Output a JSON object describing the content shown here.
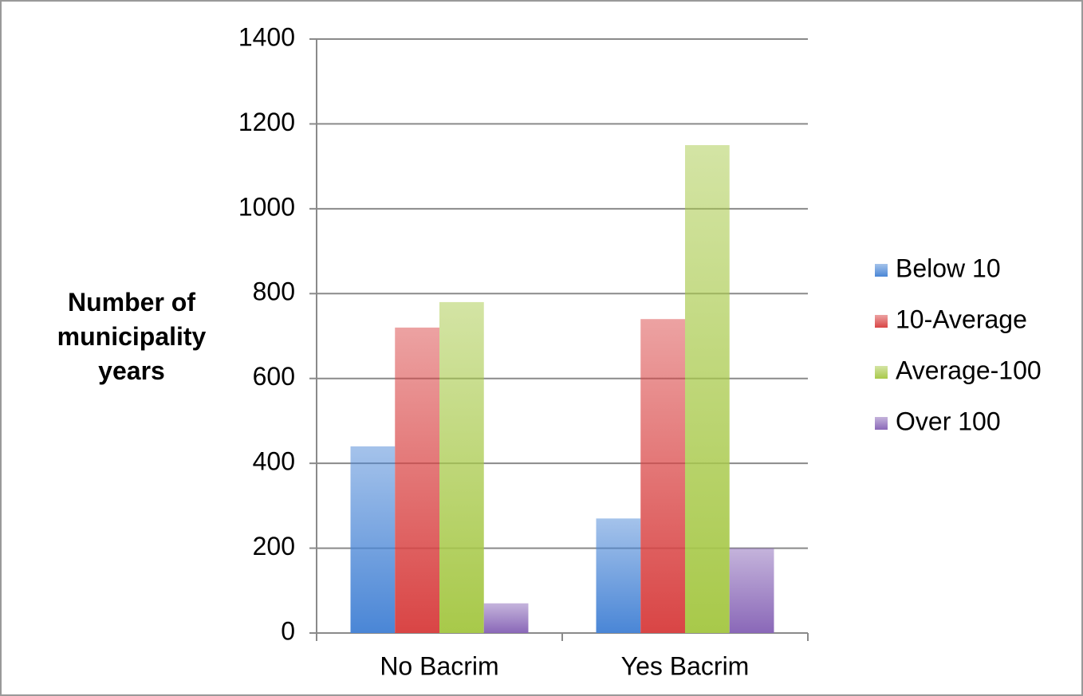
{
  "chart_data": {
    "type": "bar",
    "y_label": "Number of municipality years",
    "categories": [
      "No Bacrim",
      "Yes Bacrim"
    ],
    "series": [
      {
        "name": "Below 10",
        "color": "#4a86d6",
        "values": [
          440,
          270
        ]
      },
      {
        "name": "10-Average",
        "color": "#d94545",
        "values": [
          720,
          740
        ]
      },
      {
        "name": "Average-100",
        "color": "#a8c94a",
        "values": [
          780,
          1150
        ]
      },
      {
        "name": "Over 100",
        "color": "#8a68b8",
        "values": [
          70,
          200
        ]
      }
    ],
    "ylim": [
      0,
      1400
    ],
    "yticks": [
      0,
      200,
      400,
      600,
      800,
      1000,
      1200,
      1400
    ],
    "grid": true,
    "legend": "right"
  }
}
